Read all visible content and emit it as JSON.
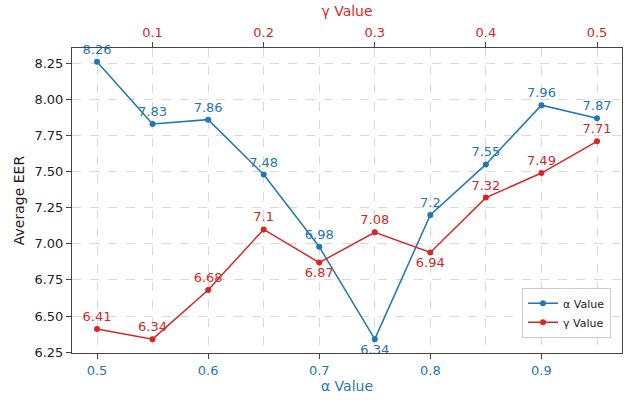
{
  "chart_data": {
    "type": "line",
    "xlabel": "α Value",
    "x2label": "γ Value",
    "ylabel": "Average EER",
    "xlim": [
      0.4775,
      0.9725
    ],
    "xticks": [
      0.5,
      0.6,
      0.7,
      0.8,
      0.9
    ],
    "x2lim": [
      0.0275,
      0.5225
    ],
    "x2ticks": [
      0.1,
      0.2,
      0.3,
      0.4,
      0.5
    ],
    "ylim": [
      6.244,
      8.356
    ],
    "yticks": [
      6.25,
      {
        "value": 6.5,
        "label": "6.50"
      },
      6.75,
      {
        "value": 7.0,
        "label": "7.00"
      },
      7.25,
      {
        "value": 7.5,
        "label": "7.50"
      },
      7.75,
      {
        "value": 8.0,
        "label": "8.00"
      },
      8.25
    ],
    "grid": true,
    "legend": "lower right",
    "data_labels": true,
    "series": [
      {
        "name": "α Value",
        "color": "#1f77b4",
        "marker": "circle",
        "axis": "x",
        "x": [
          0.5,
          0.55,
          0.6,
          0.65,
          0.7,
          0.75,
          0.8,
          0.85,
          0.9,
          0.95
        ],
        "values": [
          8.26,
          7.83,
          7.86,
          7.48,
          6.98,
          6.34,
          7.2,
          7.55,
          7.96,
          7.87
        ]
      },
      {
        "name": "γ Value",
        "color": "#d62728",
        "marker": "circle",
        "axis": "x2",
        "x": [
          0.05,
          0.1,
          0.15,
          0.2,
          0.25,
          0.3,
          0.35,
          0.4,
          0.45,
          0.5
        ],
        "values": [
          6.41,
          6.34,
          6.68,
          7.1,
          6.87,
          7.08,
          6.94,
          7.32,
          7.49,
          7.71
        ]
      }
    ]
  }
}
